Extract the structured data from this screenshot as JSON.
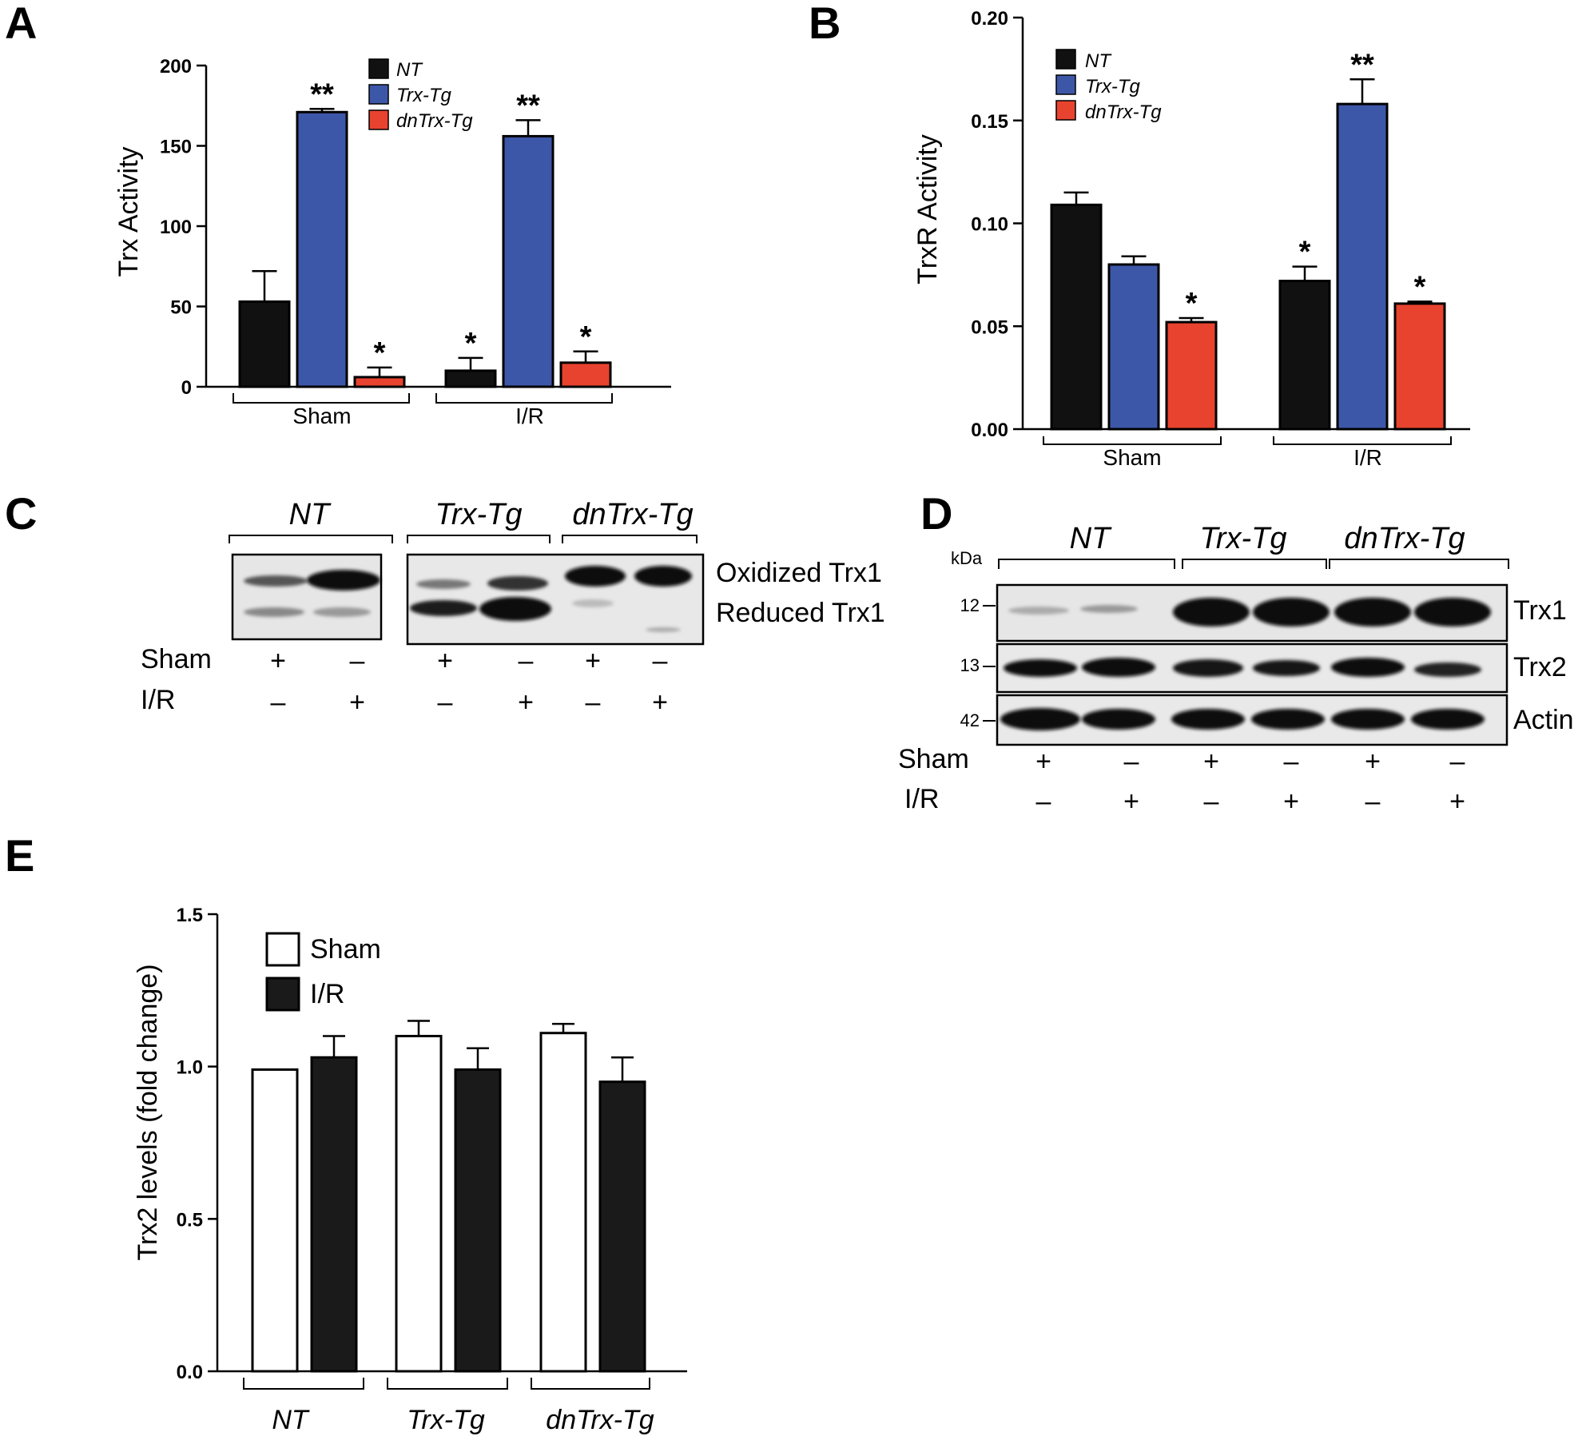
{
  "panels": {
    "A": "A",
    "B": "B",
    "C": "C",
    "D": "D",
    "E": "E"
  },
  "colors": {
    "NT": "#111111",
    "Trx-Tg": "#3d57a8",
    "dnTrx-Tg": "#e8432f",
    "sham_open": "#ffffff",
    "ir_filled": "#1a1a1a"
  },
  "chart_data": [
    {
      "panel": "A",
      "type": "bar",
      "ylabel": "Trx Activity",
      "ylim": [
        0,
        200
      ],
      "yticks": [
        0,
        50,
        100,
        150,
        200
      ],
      "groups": [
        "Sham",
        "I/R"
      ],
      "legend": [
        "NT",
        "Trx-Tg",
        "dnTrx-Tg"
      ],
      "legend_position": "top-center",
      "series": [
        {
          "name": "NT",
          "values": [
            53,
            10
          ],
          "errors": [
            19,
            8
          ],
          "marks": [
            "",
            "*"
          ]
        },
        {
          "name": "Trx-Tg",
          "values": [
            171,
            156
          ],
          "errors": [
            2,
            10
          ],
          "marks": [
            "**",
            "**"
          ]
        },
        {
          "name": "dnTrx-Tg",
          "values": [
            6,
            15
          ],
          "errors": [
            6,
            7
          ],
          "marks": [
            "*",
            "*"
          ]
        }
      ]
    },
    {
      "panel": "B",
      "type": "bar",
      "ylabel": "TrxR Activity",
      "ylim": [
        0,
        0.2
      ],
      "yticks": [
        "0.00",
        "0.05",
        "0.10",
        "0.15",
        "0.20"
      ],
      "groups": [
        "Sham",
        "I/R"
      ],
      "legend": [
        "NT",
        "Trx-Tg",
        "dnTrx-Tg"
      ],
      "legend_position": "top-left",
      "series": [
        {
          "name": "NT",
          "values": [
            0.109,
            0.072
          ],
          "errors": [
            0.006,
            0.007
          ],
          "marks": [
            "",
            "*"
          ]
        },
        {
          "name": "Trx-Tg",
          "values": [
            0.08,
            0.158
          ],
          "errors": [
            0.004,
            0.012
          ],
          "marks": [
            "",
            "**"
          ]
        },
        {
          "name": "dnTrx-Tg",
          "values": [
            0.052,
            0.061
          ],
          "errors": [
            0.002,
            0.001
          ],
          "marks": [
            "*",
            "*"
          ]
        }
      ]
    },
    {
      "panel": "E",
      "type": "bar",
      "ylabel": "Trx2 levels (fold change)",
      "ylim": [
        0,
        1.5
      ],
      "yticks": [
        "0.0",
        "0.5",
        "1.0",
        "1.5"
      ],
      "categories": [
        "NT",
        "Trx-Tg",
        "dnTrx-Tg"
      ],
      "legend": [
        "Sham",
        "I/R"
      ],
      "legend_position": "top-left",
      "series": [
        {
          "name": "Sham",
          "values": [
            0.99,
            1.1,
            1.11
          ],
          "errors": [
            0,
            0.05,
            0.03
          ]
        },
        {
          "name": "I/R",
          "values": [
            1.03,
            0.99,
            0.95
          ],
          "errors": [
            0.07,
            0.07,
            0.08
          ]
        }
      ]
    }
  ],
  "blot_c": {
    "groups": [
      "NT",
      "Trx-Tg",
      "dnTrx-Tg"
    ],
    "bands": [
      "Oxidized Trx1",
      "Reduced Trx1"
    ],
    "rows": [
      {
        "label": "Sham",
        "values": [
          "+",
          "–",
          "+",
          "–",
          "+",
          "–"
        ]
      },
      {
        "label": "I/R",
        "values": [
          "–",
          "+",
          "–",
          "+",
          "–",
          "+"
        ]
      }
    ]
  },
  "blot_d": {
    "groups": [
      "NT",
      "Trx-Tg",
      "dnTrx-Tg"
    ],
    "unit": "kDa",
    "strips": [
      {
        "kda": "12",
        "label": "Trx1"
      },
      {
        "kda": "13",
        "label": "Trx2"
      },
      {
        "kda": "42",
        "label": "Actin"
      }
    ],
    "rows": [
      {
        "label": "Sham",
        "values": [
          "+",
          "–",
          "+",
          "–",
          "+",
          "–"
        ]
      },
      {
        "label": "I/R",
        "values": [
          "–",
          "+",
          "–",
          "+",
          "–",
          "+"
        ]
      }
    ]
  }
}
